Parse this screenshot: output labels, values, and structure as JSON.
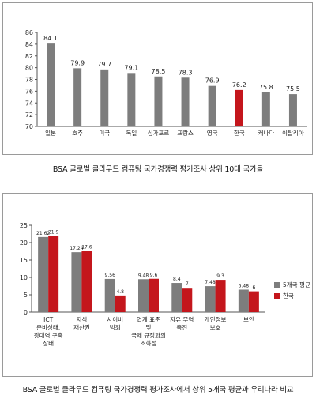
{
  "chart_data": [
    {
      "type": "bar",
      "title": "BSA 글로벌 클라우드 컴퓨팅 국가경쟁력 평가조사 상위 10대 국가들",
      "categories": [
        "일본",
        "호주",
        "미국",
        "독일",
        "싱가포르",
        "프랑스",
        "영국",
        "한국",
        "캐나다",
        "이탈리아"
      ],
      "values": [
        84.1,
        79.9,
        79.7,
        79.1,
        78.5,
        78.3,
        76.9,
        76.2,
        75.8,
        75.5
      ],
      "value_labels": [
        "84.1",
        "79.9",
        "79.7",
        "79.1",
        "78.5",
        "78.3",
        "76.9",
        "76.2",
        "75.8",
        "75.5"
      ],
      "highlight_index": 7,
      "ylim": [
        70,
        86
      ],
      "yticks": [
        "70",
        "72",
        "74",
        "76",
        "78",
        "80",
        "82",
        "84",
        "86"
      ],
      "xlabel": "",
      "ylabel": "",
      "grid": false,
      "colors": {
        "bar": "#7d7d7d",
        "highlight": "#c4161c"
      }
    },
    {
      "type": "bar",
      "title": "BSA 글로벌 클라우드 컴퓨팅 국가경쟁력 평가조사에서 상위 5개국 평균과 우리나라 비교",
      "categories": [
        [
          "ICT",
          "준비상태,",
          "광대역 구축",
          "상태"
        ],
        [
          "지식",
          "재산권"
        ],
        [
          "사이버",
          "범죄"
        ],
        [
          "업계 표준",
          "및",
          "국제 규정과의",
          "조화성"
        ],
        [
          "자유 무역",
          "촉진"
        ],
        [
          "개인정보",
          "보호"
        ],
        [
          "보안"
        ]
      ],
      "series": [
        {
          "name": "5개국 평균",
          "values": [
            21.62,
            17.24,
            9.56,
            9.48,
            8.4,
            7.48,
            6.48
          ],
          "labels": [
            "21.62",
            "17.24",
            "9.56",
            "9.48",
            "8.4",
            "7.48",
            "6.48"
          ],
          "color": "#7d7d7d"
        },
        {
          "name": "한국",
          "values": [
            21.9,
            17.6,
            4.8,
            9.6,
            7,
            9.3,
            6
          ],
          "labels": [
            "21.9",
            "17.6",
            "4.8",
            "9.6",
            "7",
            "9.3",
            "6"
          ],
          "color": "#c4161c"
        }
      ],
      "ylim": [
        0,
        25
      ],
      "yticks": [
        "0",
        "5",
        "10",
        "15",
        "20",
        "25"
      ],
      "xlabel": "",
      "ylabel": "",
      "grid": false,
      "legend": "right"
    }
  ]
}
